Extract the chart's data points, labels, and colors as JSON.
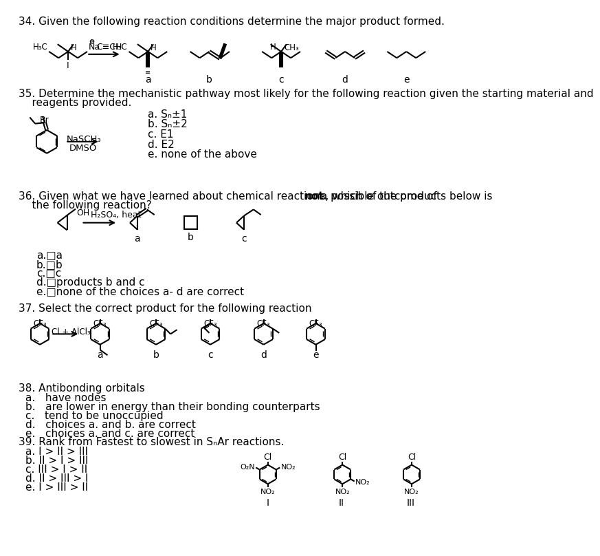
{
  "bg_color": "#ffffff",
  "q34_title": "34. Given the following reaction conditions determine the major product formed.",
  "q35_line1": "35. Determine the mechanistic pathway most likely for the following reaction given the starting material and",
  "q35_line2": "    reagents provided.",
  "q35_options": [
    "a. Sₙ±1",
    "b. Sₙ±2",
    "c. E1",
    "d. E2",
    "e. none of the above"
  ],
  "q36_line1_pre": "36. Given what we have learned about chemical reactions, which of the products below is ",
  "q36_line1_bold": "not",
  "q36_line1_post": " a possible outcome of",
  "q36_line2": "    the following reaction?",
  "q36_options": [
    "a.□a",
    "b.□b",
    "c.□c",
    "d.□products b and c",
    "e.□none of the choices a- d are correct"
  ],
  "q37_title": "37. Select the correct product for the following reaction",
  "q38_title": "38. Antibonding orbitals",
  "q38_options": [
    "a.   have nodes",
    "b.   are lower in energy than their bonding counterparts",
    "c.   tend to be unoccupied",
    "d.   choices a. and b. are correct",
    "e.   choices a. and c. are correct"
  ],
  "q39_title": "39. Rank from Fastest to slowest in SₙAr reactions.",
  "q39_options": [
    "a. I > II > III",
    "b. II > I > III",
    "c. III > I > II",
    "d. II > III > I",
    "e. I > III > II"
  ]
}
